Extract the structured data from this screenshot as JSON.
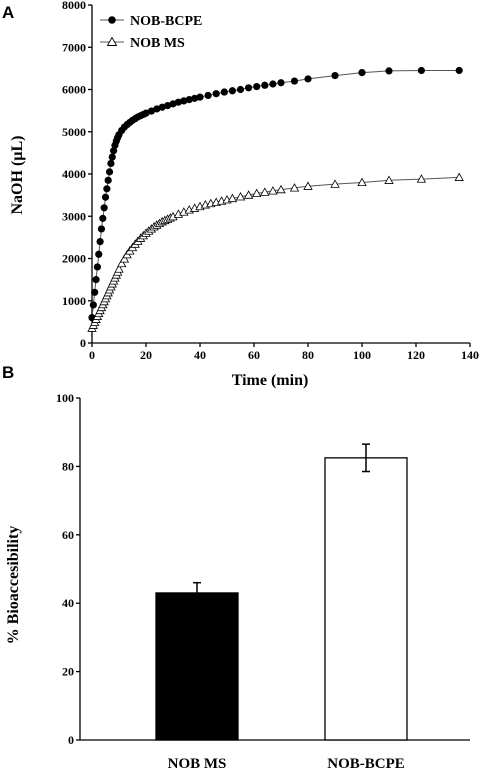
{
  "chart_data": [
    {
      "panel": "A",
      "type": "line",
      "xlabel": "Time (min)",
      "ylabel": "NaOH (µL)",
      "xlim": [
        0,
        140
      ],
      "ylim": [
        0,
        8000
      ],
      "x_ticks": [
        0,
        20,
        40,
        60,
        80,
        100,
        120,
        140
      ],
      "y_ticks": [
        0,
        1000,
        2000,
        3000,
        4000,
        5000,
        6000,
        7000,
        8000
      ],
      "legend_position": "top-left",
      "series": [
        {
          "name": "NOB-BCPE",
          "marker": "filled-circle",
          "color": "#000000",
          "x": [
            0,
            0.5,
            1,
            1.5,
            2,
            2.5,
            3,
            3.5,
            4,
            4.5,
            5,
            5.5,
            6,
            6.5,
            7,
            7.5,
            8,
            8.5,
            9,
            9.5,
            10,
            11,
            12,
            13,
            14,
            15,
            16,
            17,
            18,
            19,
            20,
            22,
            24,
            26,
            28,
            30,
            32,
            34,
            36,
            38,
            40,
            43,
            46,
            49,
            52,
            55,
            58,
            61,
            64,
            67,
            70,
            75,
            80,
            90,
            100,
            110,
            122,
            136
          ],
          "y": [
            600,
            900,
            1200,
            1500,
            1800,
            2100,
            2400,
            2700,
            2950,
            3200,
            3450,
            3650,
            3850,
            4050,
            4250,
            4400,
            4550,
            4680,
            4780,
            4860,
            4930,
            5030,
            5110,
            5170,
            5220,
            5270,
            5310,
            5350,
            5380,
            5410,
            5440,
            5490,
            5540,
            5580,
            5620,
            5660,
            5700,
            5730,
            5760,
            5790,
            5820,
            5860,
            5900,
            5940,
            5970,
            6000,
            6040,
            6070,
            6100,
            6130,
            6160,
            6200,
            6250,
            6330,
            6400,
            6440,
            6450,
            6450
          ]
        },
        {
          "name": "NOB MS",
          "marker": "open-triangle",
          "color": "#000000",
          "x": [
            0,
            0.5,
            1,
            1.5,
            2,
            2.5,
            3,
            3.5,
            4,
            4.5,
            5,
            5.5,
            6,
            6.5,
            7,
            7.5,
            8,
            8.5,
            9,
            9.5,
            10,
            11,
            12,
            13,
            14,
            15,
            16,
            17,
            18,
            19,
            20,
            21,
            22,
            23,
            24,
            25,
            26,
            27,
            28,
            29,
            30,
            32,
            34,
            36,
            38,
            40,
            42,
            44,
            46,
            48,
            50,
            52,
            55,
            58,
            61,
            64,
            67,
            70,
            75,
            80,
            90,
            100,
            110,
            122,
            136
          ],
          "y": [
            350,
            420,
            490,
            560,
            630,
            700,
            770,
            840,
            910,
            980,
            1050,
            1120,
            1190,
            1260,
            1330,
            1400,
            1470,
            1540,
            1610,
            1680,
            1750,
            1880,
            1990,
            2090,
            2180,
            2260,
            2340,
            2410,
            2480,
            2540,
            2600,
            2650,
            2700,
            2750,
            2790,
            2830,
            2870,
            2900,
            2930,
            2960,
            2990,
            3050,
            3100,
            3150,
            3190,
            3230,
            3270,
            3300,
            3330,
            3360,
            3390,
            3420,
            3460,
            3500,
            3540,
            3570,
            3600,
            3630,
            3670,
            3710,
            3760,
            3800,
            3850,
            3880,
            3920
          ]
        }
      ]
    },
    {
      "panel": "B",
      "type": "bar",
      "xlabel": "",
      "ylabel": "% Bioaccesibility",
      "ylim": [
        0,
        100
      ],
      "y_ticks": [
        0,
        20,
        40,
        60,
        80,
        100
      ],
      "categories": [
        "NOB MS",
        "NOB-BCPE"
      ],
      "values": [
        43,
        82.5
      ],
      "errors": [
        3,
        4
      ],
      "fills": [
        "#000000",
        "#ffffff"
      ]
    }
  ]
}
